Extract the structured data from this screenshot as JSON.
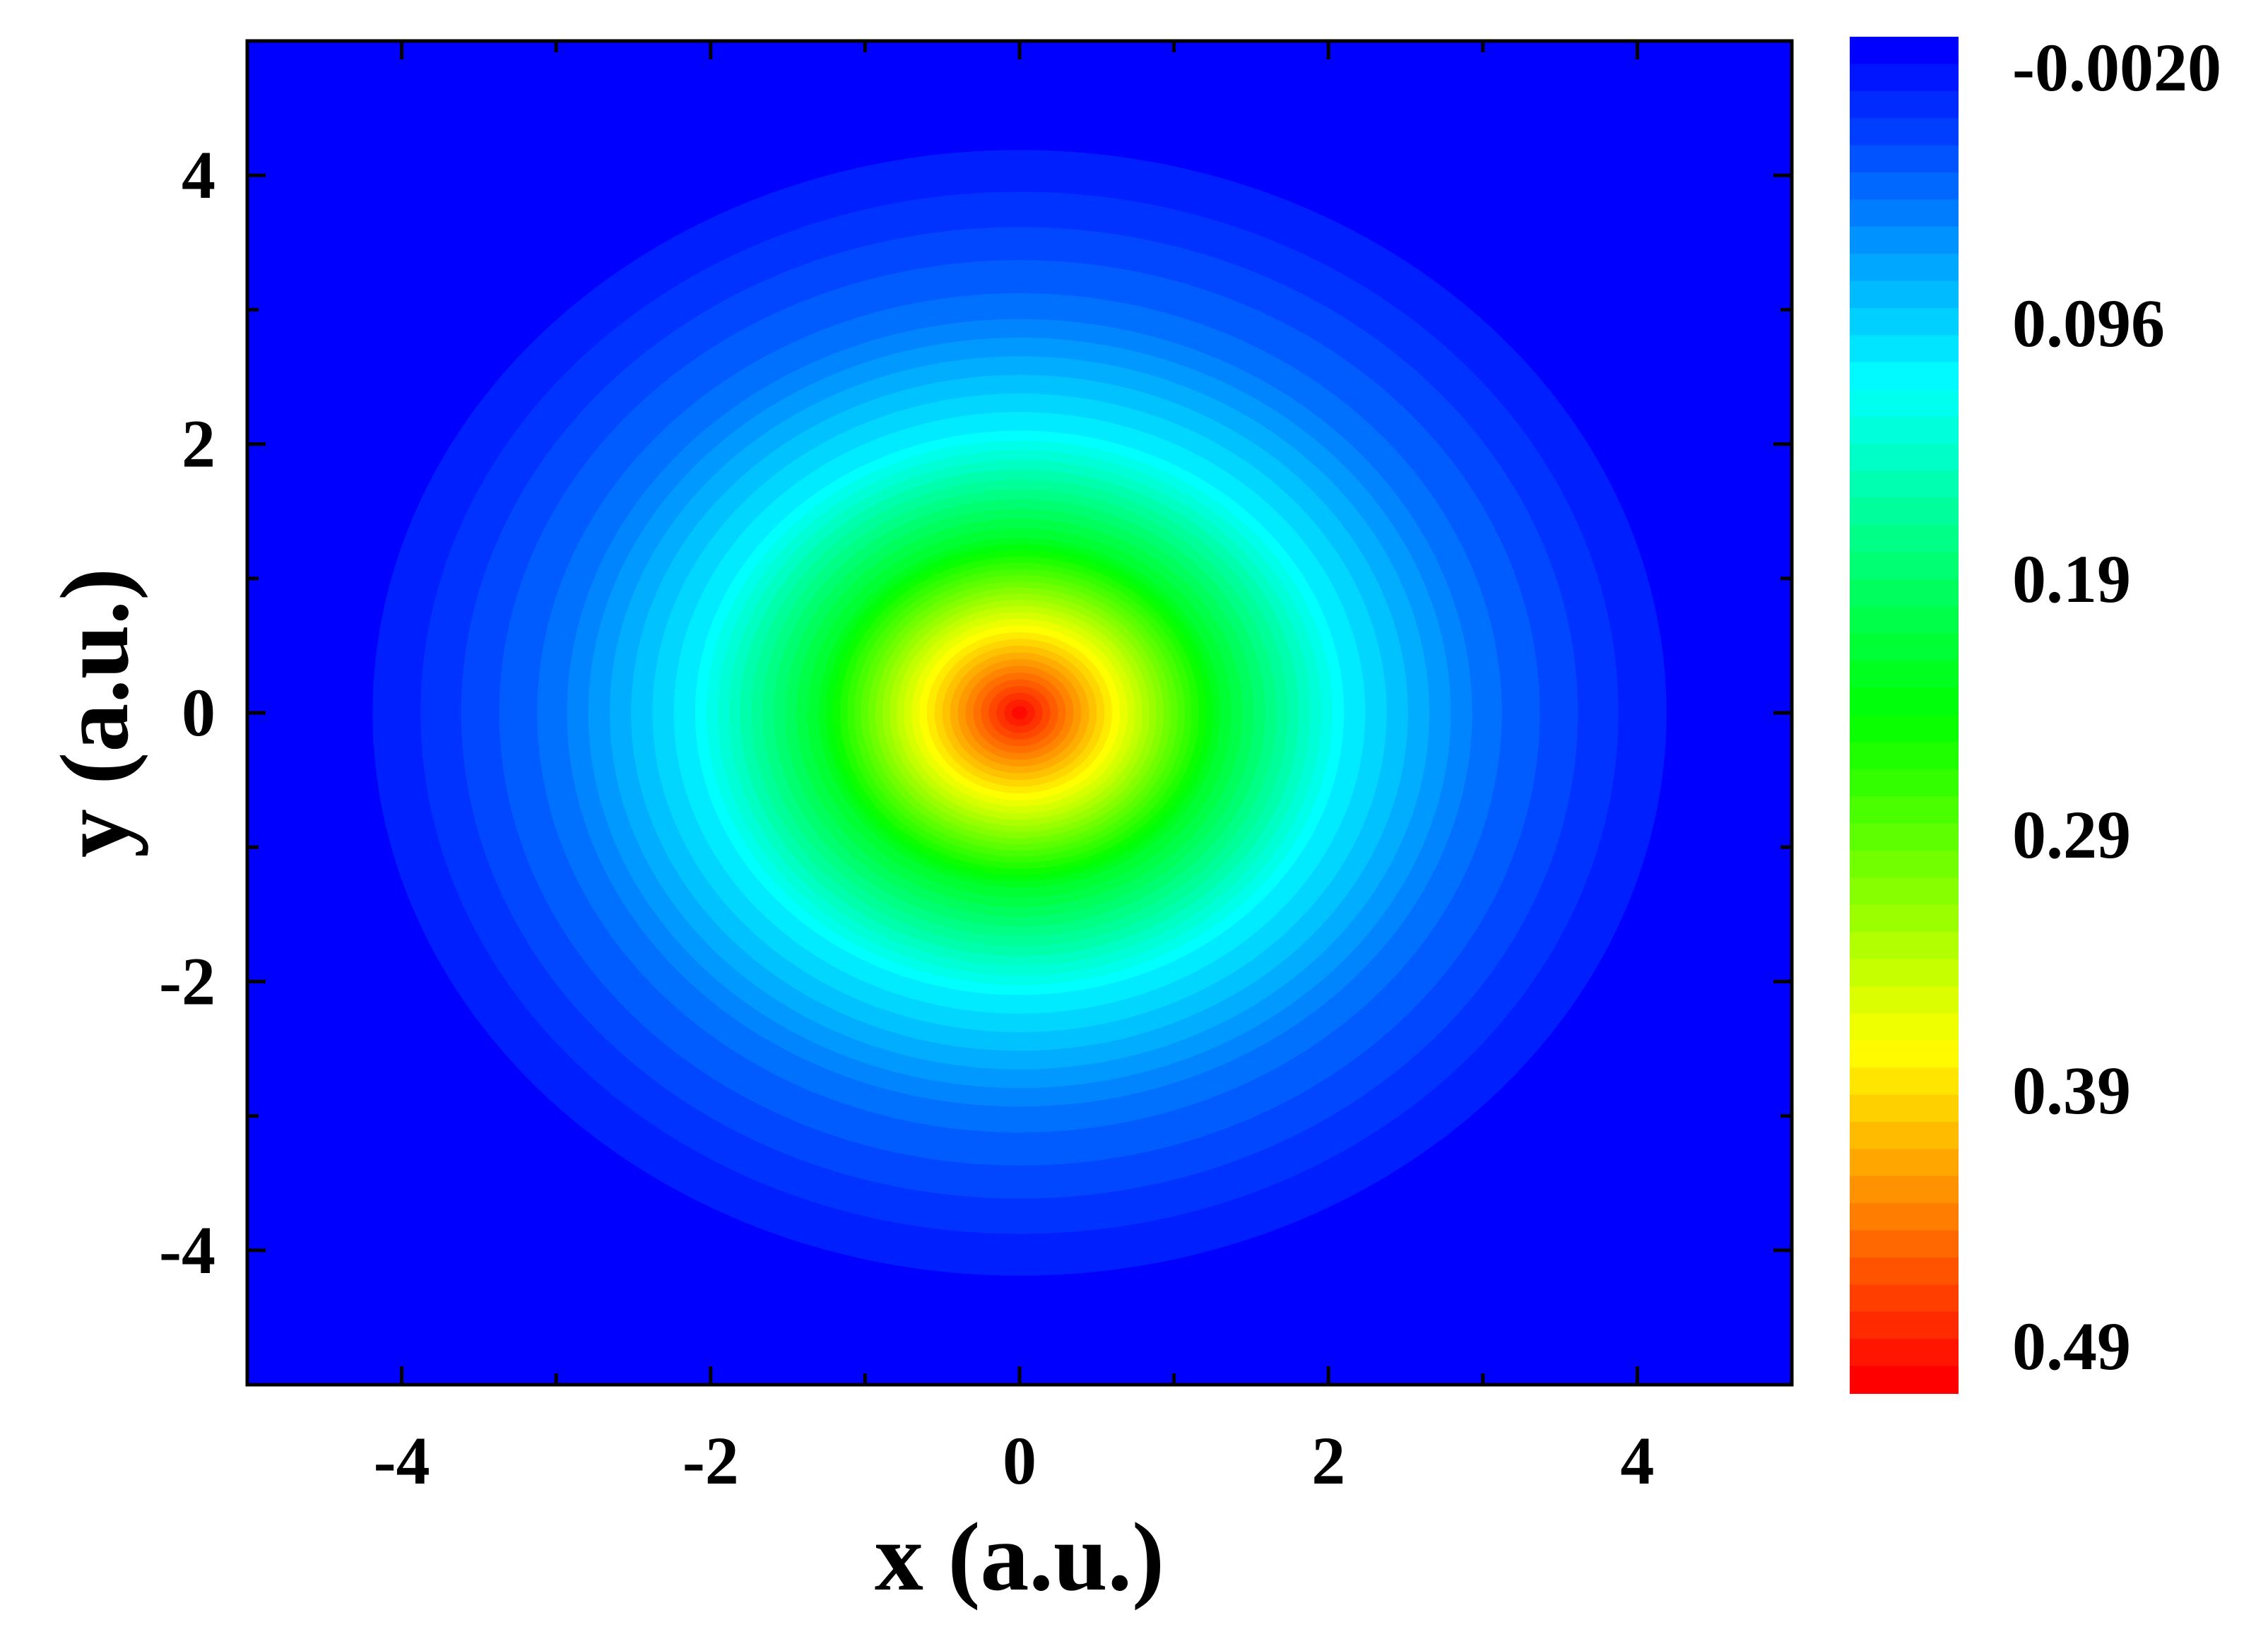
{
  "chart_data": {
    "type": "heatmap",
    "title": "",
    "xlabel": "x (a.u.)",
    "ylabel": "y (a.u.)",
    "xlim": [
      -5,
      5
    ],
    "ylim": [
      -5,
      5
    ],
    "x_ticks": [
      -4,
      -2,
      0,
      2,
      4
    ],
    "y_ticks": [
      4,
      2,
      0,
      -2,
      -4
    ],
    "x_tick_labels": [
      "-4",
      "-2",
      "0",
      "2",
      "4"
    ],
    "y_tick_labels": [
      "4",
      "2",
      "0",
      "-2",
      "-4"
    ],
    "field": {
      "description_of_shape": "radially symmetric peak centered at origin",
      "center": [
        0,
        0
      ],
      "peak_value": 0.49,
      "background_value": -0.002,
      "contour_radii": [
        0.75,
        1.3,
        2.1,
        3.0,
        3.8,
        4.5
      ]
    },
    "colorbar": {
      "min": -0.002,
      "max": 0.49,
      "levels": 50,
      "tick_labels": [
        "-0.0020",
        "0.096",
        "0.19",
        "0.29",
        "0.39",
        "0.49"
      ],
      "colors": [
        "#0000ff",
        "#00ffff",
        "#00ff00",
        "#ffff00",
        "#ff0000"
      ]
    }
  }
}
